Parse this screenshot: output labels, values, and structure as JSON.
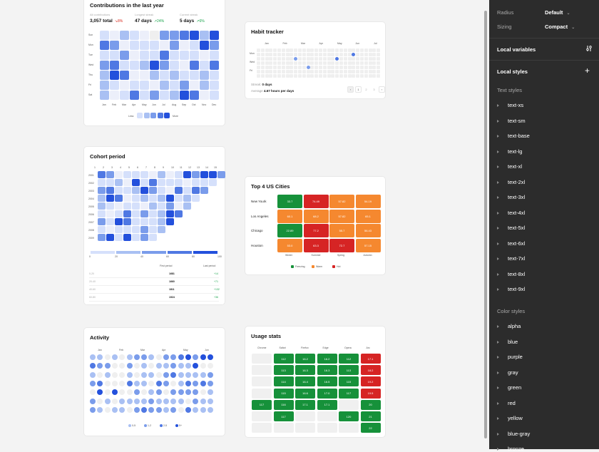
{
  "contributions": {
    "title": "Contributions in the last year",
    "stats": [
      {
        "label": "All contributions",
        "value": "3,057 total",
        "delta": "8%",
        "trend": "down",
        "color": "#d92d20"
      },
      {
        "label": "Longest streak",
        "value": "47 days",
        "delta": "24%",
        "trend": "up",
        "color": "#16a34a"
      },
      {
        "label": "Current streak",
        "value": "5 days",
        "delta": "6%",
        "trend": "up",
        "color": "#16a34a"
      }
    ],
    "days": [
      "Sun",
      "Mon",
      "Tue",
      "Wed",
      "Thu",
      "Fri",
      "Sat"
    ],
    "months": [
      "Jan",
      "Feb",
      "Mar",
      "Apr",
      "May",
      "Jun",
      "Jul",
      "Aug",
      "Sep",
      "Oct",
      "Nov",
      "Dec"
    ],
    "levels": [
      [
        1,
        0,
        2,
        1,
        0,
        -1,
        3,
        3,
        4,
        5,
        2,
        5
      ],
      [
        4,
        3,
        0,
        1,
        1,
        1,
        0,
        3,
        0,
        1,
        5,
        3
      ],
      [
        1,
        1,
        3,
        0,
        1,
        1,
        4,
        1,
        1,
        1,
        0,
        1
      ],
      [
        3,
        4,
        1,
        1,
        2,
        5,
        3,
        1,
        0,
        4,
        1,
        4
      ],
      [
        2,
        5,
        4,
        0,
        0,
        2,
        1,
        2,
        1,
        1,
        2,
        1
      ],
      [
        2,
        1,
        0,
        1,
        1,
        0,
        2,
        1,
        3,
        0,
        2,
        1
      ],
      [
        2,
        0,
        1,
        4,
        1,
        3,
        1,
        2,
        5,
        4,
        0,
        1
      ]
    ],
    "legend": {
      "less": "Less",
      "more": "More"
    }
  },
  "habit": {
    "title": "Habit tracker",
    "months": [
      "Jan",
      "Feb",
      "Mar",
      "Apr",
      "May",
      "Jun",
      "Jul"
    ],
    "days": [
      "Mon",
      "Wed",
      "Fri"
    ],
    "marks": [
      {
        "col": 23,
        "row": 1,
        "level": 3
      },
      {
        "col": 9,
        "row": 2,
        "level": 2
      },
      {
        "col": 19,
        "row": 2,
        "level": 3
      },
      {
        "col": 12,
        "row": 4,
        "level": 2
      }
    ],
    "streak_label": "Streak:",
    "streak_value": "0 days",
    "average_label": "Average",
    "average_value": "4.67 hours per days",
    "pagination": {
      "prev": "‹",
      "pages": [
        "1",
        "2",
        "3"
      ],
      "next": "›"
    }
  },
  "cohort": {
    "title": "Cohort period",
    "cols": [
      "1",
      "2",
      "3",
      "4",
      "5",
      "6",
      "7",
      "8",
      "9",
      "10",
      "11",
      "12",
      "13",
      "14",
      "15"
    ],
    "rows": [
      "2001",
      "2002",
      "2003",
      "2004",
      "2005",
      "2006",
      "2007",
      "2008",
      "2009"
    ],
    "levels": [
      [
        4,
        3,
        0,
        1,
        1,
        1,
        0,
        2,
        0,
        1,
        5,
        3,
        5,
        5,
        3
      ],
      [
        1,
        1,
        2,
        0,
        5,
        1,
        4,
        1,
        1,
        1,
        0,
        1,
        1,
        1
      ],
      [
        3,
        4,
        1,
        1,
        2,
        5,
        3,
        1,
        0,
        4,
        1,
        4,
        3
      ],
      [
        2,
        5,
        4,
        0,
        1,
        2,
        1,
        2,
        5,
        1,
        2,
        1
      ],
      [
        2,
        1,
        0,
        1,
        1,
        0,
        2,
        1,
        3,
        0,
        2
      ],
      [
        1,
        0,
        1,
        4,
        1,
        3,
        1,
        2,
        5,
        4
      ],
      [
        3,
        1,
        5,
        4,
        1,
        1,
        1,
        2,
        5
      ],
      [
        1,
        0,
        1,
        1,
        1,
        3,
        1,
        2
      ],
      [
        3,
        5,
        1,
        5,
        1,
        3,
        1
      ]
    ],
    "scale": [
      "0",
      "20",
      "40",
      "60",
      "80",
      "100"
    ],
    "table": {
      "headers": [
        "",
        "First period",
        "Last period"
      ],
      "rows": [
        [
          "0-20",
          "1681",
          "+14"
        ],
        [
          "20-40",
          "1660",
          "+71"
        ],
        [
          "40-60",
          "1811",
          "+132"
        ],
        [
          "60-80",
          "1924",
          "+36"
        ]
      ]
    }
  },
  "cities": {
    "title": "Top 4 US Cities",
    "rows": [
      "New Yourk",
      "Los Angeles",
      "Chicago",
      "Houston"
    ],
    "cols": [
      "Winter",
      "Summer",
      "Spring",
      "Autumn"
    ],
    "values": [
      [
        {
          "v": "33.7",
          "c": "f"
        },
        {
          "v": "74.49",
          "c": "h"
        },
        {
          "v": "57.82",
          "c": "w"
        },
        {
          "v": "54.19",
          "c": "w"
        }
      ],
      [
        {
          "v": "60.1",
          "c": "w"
        },
        {
          "v": "68.2",
          "c": "w"
        },
        {
          "v": "57.82",
          "c": "w"
        },
        {
          "v": "65.1",
          "c": "w"
        }
      ],
      [
        {
          "v": "22.89",
          "c": "f"
        },
        {
          "v": "77.2",
          "c": "h"
        },
        {
          "v": "55.7",
          "c": "w"
        },
        {
          "v": "56.43",
          "c": "w"
        }
      ],
      [
        {
          "v": "53.0",
          "c": "w"
        },
        {
          "v": "63.3",
          "c": "h"
        },
        {
          "v": "72.7",
          "c": "h"
        },
        {
          "v": "57.15",
          "c": "w"
        }
      ]
    ],
    "legend": [
      {
        "label": "Freezing",
        "color": "#16913a"
      },
      {
        "label": "Warm",
        "color": "#f5882f"
      },
      {
        "label": "Hot",
        "color": "#d62424"
      }
    ]
  },
  "activity": {
    "title": "Activity",
    "months": [
      "Jan",
      "Feb",
      "Mar",
      "Apr",
      "May",
      "Jun"
    ],
    "levels": [
      [
        1,
        1,
        0,
        1,
        0,
        1,
        2,
        2,
        1,
        0,
        2,
        2,
        3,
        4,
        2,
        4,
        4
      ],
      [
        3,
        2,
        2,
        0,
        0,
        2,
        0,
        1,
        0,
        1,
        1,
        2,
        1,
        1,
        4,
        0,
        0
      ],
      [
        1,
        0,
        1,
        0,
        0,
        1,
        0,
        1,
        1,
        0,
        2,
        3,
        1,
        1,
        1,
        1,
        2
      ],
      [
        2,
        3,
        0,
        0,
        0,
        3,
        1,
        1,
        0,
        3,
        2,
        0,
        1,
        3,
        2,
        3,
        2
      ],
      [
        0,
        4,
        0,
        4,
        0,
        0,
        2,
        0,
        1,
        2,
        0,
        2,
        2,
        2,
        2,
        0,
        1
      ],
      [
        2,
        0,
        1,
        0,
        1,
        1,
        1,
        1,
        2,
        1,
        1,
        1,
        1,
        0,
        2,
        1,
        1
      ],
      [
        2,
        1,
        0,
        1,
        1,
        0,
        2,
        3,
        2,
        2,
        1,
        2,
        0,
        3,
        1,
        1,
        1
      ]
    ],
    "legend": [
      "0-5",
      "1-2",
      "2-5",
      "5+"
    ]
  },
  "usage": {
    "title": "Usage stats",
    "browsers": [
      "Chrome",
      "Safari",
      "Firefox",
      "Edge",
      "Opera",
      "Arc"
    ],
    "grid": [
      [
        null,
        "112",
        "16.2",
        "16.2",
        "112",
        "17.1"
      ],
      [
        null,
        "113",
        "16.3",
        "16.3",
        "113",
        "18.2"
      ],
      [
        null,
        "114",
        "16.4",
        "16.5",
        "115",
        "19.2"
      ],
      [
        null,
        "115",
        "16.6",
        "17.0",
        "117",
        "19.5"
      ],
      [
        "117",
        "116",
        "17.1",
        "17.1",
        null,
        "20"
      ],
      [
        null,
        "117",
        null,
        null,
        "120",
        "21"
      ],
      [
        null,
        null,
        null,
        null,
        null,
        "22"
      ]
    ],
    "red_col": 5,
    "red_rows": [
      0,
      1,
      2,
      3
    ]
  },
  "panel": {
    "radius_label": "Radius",
    "radius_value": "Default",
    "sizing_label": "Sizing",
    "sizing_value": "Compact",
    "local_variables": "Local variables",
    "local_styles": "Local styles",
    "text_styles_header": "Text styles",
    "text_styles": [
      "text-xs",
      "text-sm",
      "text-base",
      "text-lg",
      "text-xl",
      "text-2xl",
      "text-3xl",
      "text-4xl",
      "text-5xl",
      "text-6xl",
      "text-7xl",
      "text-8xl",
      "text-9xl"
    ],
    "color_styles_header": "Color styles",
    "color_styles": [
      "alpha",
      "blue",
      "purple",
      "gray",
      "green",
      "red",
      "yellow",
      "blue-gray",
      "bronze"
    ]
  },
  "colors": {
    "blue_levels": [
      "#f3f3f3",
      "#d5e0fb",
      "#a9c0f3",
      "#7a9ceb",
      "#4f78e3",
      "#2350dc"
    ],
    "freezing": "#16913a",
    "warm": "#f5882f",
    "hot": "#d62424"
  }
}
